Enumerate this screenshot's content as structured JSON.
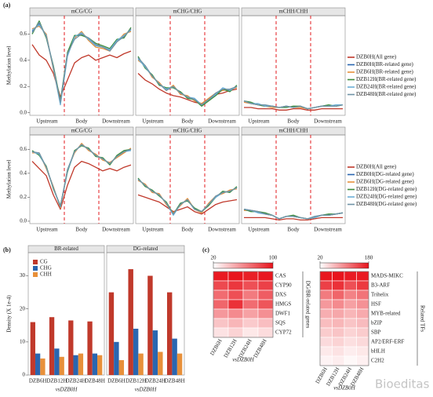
{
  "panel_labels": [
    "(a)",
    "(b)",
    "(c)"
  ],
  "watermark": "Bioeditas",
  "chart_data": [
    {
      "type": "line",
      "ylabel": "Methylation level",
      "xlabels": [
        "Upstream",
        "Body",
        "Downstream"
      ],
      "ylim": [
        -0.02,
        0.74
      ],
      "yticks": [
        {
          "value": 0,
          "label": "0.0"
        },
        0.2,
        0.4,
        0.6
      ],
      "series": [
        {
          "name": "DZB0H(All gene)",
          "color": "#c0392b"
        },
        {
          "name": "DZB0H(BR-related gene)",
          "color": "#2a66b0"
        },
        {
          "name": "DZB6H(BR-related gene)",
          "color": "#e8903a"
        },
        {
          "name": "DZB12H(BR-related gene)",
          "color": "#3c8c3c"
        },
        {
          "name": "DZB24H(BR-related gene)",
          "color": "#6aaed6"
        },
        {
          "name": "DZB48H(BR-related gene)",
          "color": "#6f93a6"
        }
      ],
      "facets": [
        {
          "title": "mCG/CG",
          "values": [
            [
              0.52,
              0.44,
              0.4,
              0.3,
              0.12,
              0.25,
              0.38,
              0.42,
              0.44,
              0.4,
              0.42,
              0.44,
              0.42,
              0.45,
              0.47
            ],
            [
              0.62,
              0.68,
              0.58,
              0.35,
              0.08,
              0.45,
              0.58,
              0.6,
              0.56,
              0.52,
              0.5,
              0.48,
              0.55,
              0.58,
              0.64
            ],
            [
              0.64,
              0.66,
              0.6,
              0.33,
              0.07,
              0.44,
              0.57,
              0.62,
              0.55,
              0.5,
              0.49,
              0.47,
              0.54,
              0.6,
              0.62
            ],
            [
              0.6,
              0.7,
              0.57,
              0.36,
              0.09,
              0.46,
              0.59,
              0.59,
              0.57,
              0.53,
              0.51,
              0.49,
              0.56,
              0.57,
              0.65
            ],
            [
              0.63,
              0.67,
              0.59,
              0.34,
              0.06,
              0.43,
              0.58,
              0.61,
              0.56,
              0.51,
              0.5,
              0.48,
              0.55,
              0.59,
              0.63
            ],
            [
              0.61,
              0.69,
              0.58,
              0.35,
              0.08,
              0.45,
              0.56,
              0.6,
              0.57,
              0.52,
              0.5,
              0.47,
              0.54,
              0.58,
              0.64
            ]
          ]
        },
        {
          "title": "mCHG/CHG",
          "values": [
            [
              0.3,
              0.25,
              0.22,
              0.18,
              0.15,
              0.13,
              0.12,
              0.1,
              0.08,
              0.07,
              0.1,
              0.14,
              0.15,
              0.17,
              0.18
            ],
            [
              0.42,
              0.35,
              0.28,
              0.22,
              0.18,
              0.2,
              0.15,
              0.12,
              0.1,
              0.06,
              0.1,
              0.14,
              0.18,
              0.17,
              0.2
            ],
            [
              0.4,
              0.36,
              0.27,
              0.23,
              0.17,
              0.21,
              0.14,
              0.13,
              0.09,
              0.07,
              0.11,
              0.15,
              0.17,
              0.18,
              0.19
            ],
            [
              0.43,
              0.34,
              0.29,
              0.21,
              0.19,
              0.19,
              0.16,
              0.11,
              0.1,
              0.05,
              0.09,
              0.13,
              0.18,
              0.16,
              0.21
            ],
            [
              0.41,
              0.35,
              0.28,
              0.22,
              0.18,
              0.2,
              0.15,
              0.12,
              0.11,
              0.06,
              0.1,
              0.14,
              0.19,
              0.17,
              0.2
            ],
            [
              0.42,
              0.36,
              0.28,
              0.22,
              0.17,
              0.2,
              0.15,
              0.12,
              0.1,
              0.06,
              0.1,
              0.15,
              0.18,
              0.18,
              0.2
            ]
          ]
        },
        {
          "title": "mCHH/CHH",
          "values": [
            [
              0.04,
              0.04,
              0.03,
              0.03,
              0.03,
              0.02,
              0.02,
              0.03,
              0.03,
              0.02,
              0.02,
              0.03,
              0.03,
              0.03,
              0.03
            ],
            [
              0.09,
              0.07,
              0.06,
              0.05,
              0.05,
              0.04,
              0.05,
              0.04,
              0.05,
              0.03,
              0.04,
              0.05,
              0.05,
              0.05,
              0.06
            ],
            [
              0.08,
              0.07,
              0.06,
              0.05,
              0.04,
              0.04,
              0.05,
              0.04,
              0.04,
              0.03,
              0.04,
              0.05,
              0.05,
              0.05,
              0.06
            ],
            [
              0.09,
              0.08,
              0.06,
              0.05,
              0.05,
              0.04,
              0.04,
              0.05,
              0.05,
              0.03,
              0.04,
              0.05,
              0.06,
              0.05,
              0.06
            ],
            [
              0.09,
              0.07,
              0.07,
              0.05,
              0.05,
              0.04,
              0.05,
              0.04,
              0.05,
              0.03,
              0.04,
              0.05,
              0.05,
              0.06,
              0.06
            ],
            [
              0.09,
              0.07,
              0.06,
              0.06,
              0.05,
              0.04,
              0.05,
              0.04,
              0.05,
              0.03,
              0.04,
              0.05,
              0.05,
              0.05,
              0.06
            ]
          ]
        }
      ]
    },
    {
      "type": "line",
      "ylabel": "Methylation level",
      "xlabels": [
        "Upstream",
        "Body",
        "Downstream"
      ],
      "ylim": [
        -0.02,
        0.72
      ],
      "yticks": [
        {
          "value": 0,
          "label": "0.0"
        },
        0.2,
        0.4,
        0.6
      ],
      "series": [
        {
          "name": "DZB0H(All gene)",
          "color": "#c0392b"
        },
        {
          "name": "DZB0H(DG-related gene)",
          "color": "#2a66b0"
        },
        {
          "name": "DZB6H(DG-related gene)",
          "color": "#e8903a"
        },
        {
          "name": "DZB12H(DG-related gene)",
          "color": "#3c8c3c"
        },
        {
          "name": "DZB24H(DG-related gene)",
          "color": "#6aaed6"
        },
        {
          "name": "DZB48H(DG-related gene)",
          "color": "#6f93a6"
        }
      ],
      "facets": [
        {
          "title": "mCG/CG",
          "values": [
            [
              0.5,
              0.44,
              0.38,
              0.22,
              0.1,
              0.3,
              0.45,
              0.5,
              0.48,
              0.45,
              0.42,
              0.44,
              0.42,
              0.45,
              0.47
            ],
            [
              0.58,
              0.56,
              0.45,
              0.28,
              0.12,
              0.42,
              0.58,
              0.64,
              0.6,
              0.55,
              0.52,
              0.48,
              0.54,
              0.58,
              0.6
            ],
            [
              0.57,
              0.57,
              0.44,
              0.29,
              0.11,
              0.43,
              0.57,
              0.65,
              0.59,
              0.56,
              0.51,
              0.49,
              0.53,
              0.57,
              0.61
            ],
            [
              0.59,
              0.55,
              0.46,
              0.27,
              0.13,
              0.41,
              0.59,
              0.63,
              0.61,
              0.54,
              0.53,
              0.47,
              0.55,
              0.59,
              0.6
            ],
            [
              0.58,
              0.56,
              0.45,
              0.28,
              0.12,
              0.42,
              0.58,
              0.64,
              0.6,
              0.55,
              0.52,
              0.48,
              0.54,
              0.58,
              0.59
            ],
            [
              0.58,
              0.57,
              0.45,
              0.28,
              0.12,
              0.43,
              0.58,
              0.64,
              0.6,
              0.55,
              0.52,
              0.48,
              0.54,
              0.58,
              0.6
            ]
          ]
        },
        {
          "title": "mCHG/CHG",
          "values": [
            [
              0.22,
              0.2,
              0.18,
              0.16,
              0.12,
              0.08,
              0.1,
              0.12,
              0.08,
              0.06,
              0.1,
              0.14,
              0.16,
              0.17,
              0.18
            ],
            [
              0.35,
              0.3,
              0.25,
              0.22,
              0.15,
              0.06,
              0.14,
              0.18,
              0.1,
              0.08,
              0.14,
              0.2,
              0.24,
              0.25,
              0.28
            ],
            [
              0.34,
              0.31,
              0.24,
              0.23,
              0.14,
              0.07,
              0.13,
              0.19,
              0.1,
              0.07,
              0.15,
              0.21,
              0.23,
              0.26,
              0.27
            ],
            [
              0.36,
              0.29,
              0.26,
              0.21,
              0.16,
              0.06,
              0.15,
              0.17,
              0.11,
              0.08,
              0.13,
              0.2,
              0.25,
              0.24,
              0.29
            ],
            [
              0.35,
              0.3,
              0.25,
              0.22,
              0.15,
              0.05,
              0.14,
              0.18,
              0.1,
              0.08,
              0.14,
              0.2,
              0.24,
              0.25,
              0.28
            ],
            [
              0.35,
              0.3,
              0.25,
              0.22,
              0.15,
              0.06,
              0.14,
              0.18,
              0.1,
              0.08,
              0.14,
              0.21,
              0.24,
              0.25,
              0.28
            ]
          ]
        },
        {
          "title": "mCHH/CHH",
          "values": [
            [
              0.03,
              0.03,
              0.03,
              0.03,
              0.02,
              0.01,
              0.02,
              0.02,
              0.01,
              0.01,
              0.02,
              0.03,
              0.03,
              0.03,
              0.03
            ],
            [
              0.1,
              0.09,
              0.08,
              0.06,
              0.05,
              0.02,
              0.04,
              0.04,
              0.03,
              0.02,
              0.03,
              0.05,
              0.05,
              0.06,
              0.07
            ],
            [
              0.09,
              0.09,
              0.08,
              0.06,
              0.05,
              0.02,
              0.04,
              0.04,
              0.03,
              0.02,
              0.03,
              0.05,
              0.05,
              0.06,
              0.07
            ],
            [
              0.1,
              0.08,
              0.08,
              0.07,
              0.05,
              0.02,
              0.04,
              0.05,
              0.03,
              0.02,
              0.03,
              0.05,
              0.06,
              0.06,
              0.07
            ],
            [
              0.1,
              0.09,
              0.07,
              0.06,
              0.05,
              0.02,
              0.04,
              0.04,
              0.03,
              0.02,
              0.03,
              0.05,
              0.05,
              0.06,
              0.07
            ],
            [
              0.1,
              0.09,
              0.08,
              0.06,
              0.05,
              0.02,
              0.04,
              0.04,
              0.03,
              0.02,
              0.04,
              0.05,
              0.05,
              0.06,
              0.07
            ]
          ]
        }
      ]
    },
    {
      "type": "bar",
      "ylabel": "Density (X 1e-4)",
      "xlabel": "vsDZB0H",
      "categories": [
        "DZB6H",
        "DZB12H",
        "DZB24H",
        "DZB48H"
      ],
      "ylim": [
        0,
        37
      ],
      "yticks": [
        0,
        10,
        20,
        30
      ],
      "series": [
        {
          "name": "CG",
          "color": "#c0392b"
        },
        {
          "name": "CHG",
          "color": "#2a66b0"
        },
        {
          "name": "CHH",
          "color": "#e8903a"
        }
      ],
      "facets": [
        {
          "title": "BR-related",
          "values": [
            [
              16,
              17.5,
              16.5,
              16.2
            ],
            [
              6.5,
              8,
              6,
              6.5
            ],
            [
              5,
              5.5,
              6.5,
              6
            ]
          ]
        },
        {
          "title": "DG-related",
          "values": [
            [
              25,
              32,
              30,
              25
            ],
            [
              10,
              14,
              13.5,
              11
            ],
            [
              4.5,
              6.5,
              7,
              6.5
            ]
          ]
        }
      ]
    },
    {
      "type": "heatmap",
      "side_label": "DG/BR-related genes",
      "xlabel": "vsDZB0H",
      "rows": [
        "CAS",
        "CYP90",
        "DXS",
        "HMGS",
        "DWF1",
        "SQS",
        "CYP72"
      ],
      "columns": [
        "DZB6H",
        "DZB12H",
        "DZB24H",
        "DZB48H"
      ],
      "colorbar_lim": [
        20,
        100
      ],
      "colorbar_ticks": [
        20,
        100
      ],
      "color": "#e8141c",
      "values": [
        [
          98,
          100,
          96,
          99
        ],
        [
          82,
          88,
          80,
          85
        ],
        [
          70,
          80,
          65,
          75
        ],
        [
          72,
          90,
          70,
          78
        ],
        [
          55,
          60,
          52,
          58
        ],
        [
          40,
          45,
          38,
          42
        ],
        [
          30,
          35,
          28,
          32
        ]
      ]
    },
    {
      "type": "heatmap",
      "side_label": "Related TFs",
      "xlabel": "vsDZB0H",
      "rows": [
        "MADS-MIKC",
        "B3-ARF",
        "Trihelix",
        "HSF",
        "MYB-related",
        "bZIP",
        "SBP",
        "AP2/ERF-ERF",
        "bHLH",
        "C2H2"
      ],
      "columns": [
        "DZB6H",
        "DZB12H",
        "DZB24H",
        "DZB48H"
      ],
      "colorbar_lim": [
        20,
        180
      ],
      "colorbar_ticks": [
        20,
        180
      ],
      "color": "#e8141c",
      "values": [
        [
          178,
          180,
          175,
          176
        ],
        [
          150,
          160,
          140,
          155
        ],
        [
          110,
          125,
          105,
          115
        ],
        [
          90,
          100,
          85,
          95
        ],
        [
          75,
          80,
          70,
          78
        ],
        [
          65,
          70,
          60,
          66
        ],
        [
          55,
          60,
          50,
          55
        ],
        [
          45,
          50,
          42,
          46
        ],
        [
          35,
          40,
          32,
          36
        ],
        [
          28,
          32,
          25,
          30
        ]
      ]
    }
  ]
}
